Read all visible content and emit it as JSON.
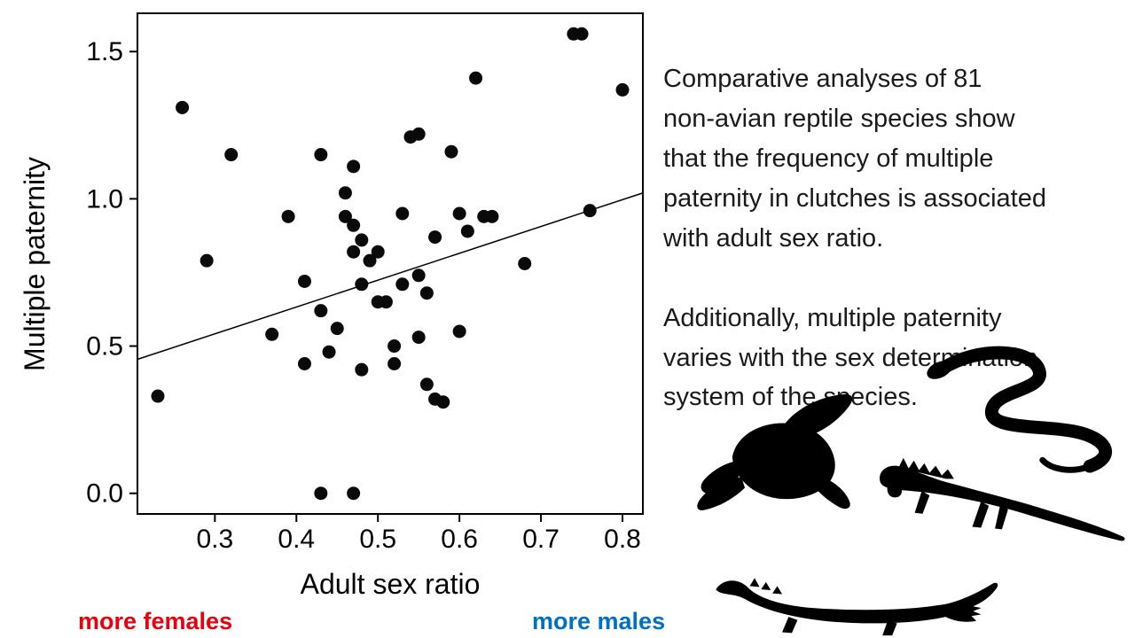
{
  "caption": {
    "text1": "Comparative analyses of 81\nnon-avian reptile species show\nthat the frequency of multiple\npaternity in clutches is associated\nwith adult sex ratio.",
    "text2": "Additionally, multiple paternity\nvaries with the sex determination\nsystem of the species."
  },
  "chart_data": {
    "type": "scatter",
    "title": "",
    "xlabel": "Adult sex ratio",
    "ylabel": "Multiple paternity",
    "xlim": [
      0.205,
      0.825
    ],
    "ylim": [
      -0.07,
      1.63
    ],
    "xticks": [
      "0.3",
      "0.4",
      "0.5",
      "0.6",
      "0.7",
      "0.8"
    ],
    "yticks": [
      "0.0",
      "0.5",
      "1.0",
      "1.5"
    ],
    "grid": false,
    "legend": "none",
    "point_color": "#0a0a0a",
    "points": [
      [
        0.23,
        0.33
      ],
      [
        0.26,
        1.31
      ],
      [
        0.29,
        0.79
      ],
      [
        0.32,
        1.15
      ],
      [
        0.37,
        0.54
      ],
      [
        0.39,
        0.94
      ],
      [
        0.41,
        0.72
      ],
      [
        0.41,
        0.44
      ],
      [
        0.43,
        0.62
      ],
      [
        0.43,
        1.15
      ],
      [
        0.43,
        0.0
      ],
      [
        0.44,
        0.48
      ],
      [
        0.45,
        0.56
      ],
      [
        0.46,
        1.02
      ],
      [
        0.46,
        0.94
      ],
      [
        0.47,
        1.11
      ],
      [
        0.47,
        0.91
      ],
      [
        0.47,
        0.0
      ],
      [
        0.47,
        0.82
      ],
      [
        0.48,
        0.71
      ],
      [
        0.48,
        0.86
      ],
      [
        0.48,
        0.42
      ],
      [
        0.49,
        0.79
      ],
      [
        0.5,
        0.65
      ],
      [
        0.5,
        0.82
      ],
      [
        0.51,
        0.65
      ],
      [
        0.52,
        0.44
      ],
      [
        0.52,
        0.5
      ],
      [
        0.53,
        0.71
      ],
      [
        0.53,
        0.95
      ],
      [
        0.54,
        1.21
      ],
      [
        0.55,
        0.74
      ],
      [
        0.55,
        0.53
      ],
      [
        0.55,
        1.22
      ],
      [
        0.56,
        0.68
      ],
      [
        0.56,
        0.37
      ],
      [
        0.57,
        0.32
      ],
      [
        0.57,
        0.87
      ],
      [
        0.58,
        0.31
      ],
      [
        0.59,
        1.16
      ],
      [
        0.6,
        0.55
      ],
      [
        0.6,
        0.95
      ],
      [
        0.61,
        0.89
      ],
      [
        0.62,
        1.41
      ],
      [
        0.63,
        0.94
      ],
      [
        0.64,
        0.94
      ],
      [
        0.68,
        0.78
      ],
      [
        0.74,
        1.56
      ],
      [
        0.75,
        1.56
      ],
      [
        0.76,
        0.96
      ],
      [
        0.8,
        1.37
      ]
    ],
    "trendline": {
      "x": [
        0.205,
        0.825
      ],
      "y": [
        0.455,
        1.02
      ]
    },
    "annotations": {
      "left": {
        "label": "more females",
        "color": "#e8000d"
      },
      "right": {
        "label": "more males",
        "color": "#0070c0"
      }
    }
  },
  "silhouettes": {
    "turtle": "sea-turtle",
    "snake": "snake",
    "iguana": "iguana",
    "crocodile": "crocodile"
  }
}
